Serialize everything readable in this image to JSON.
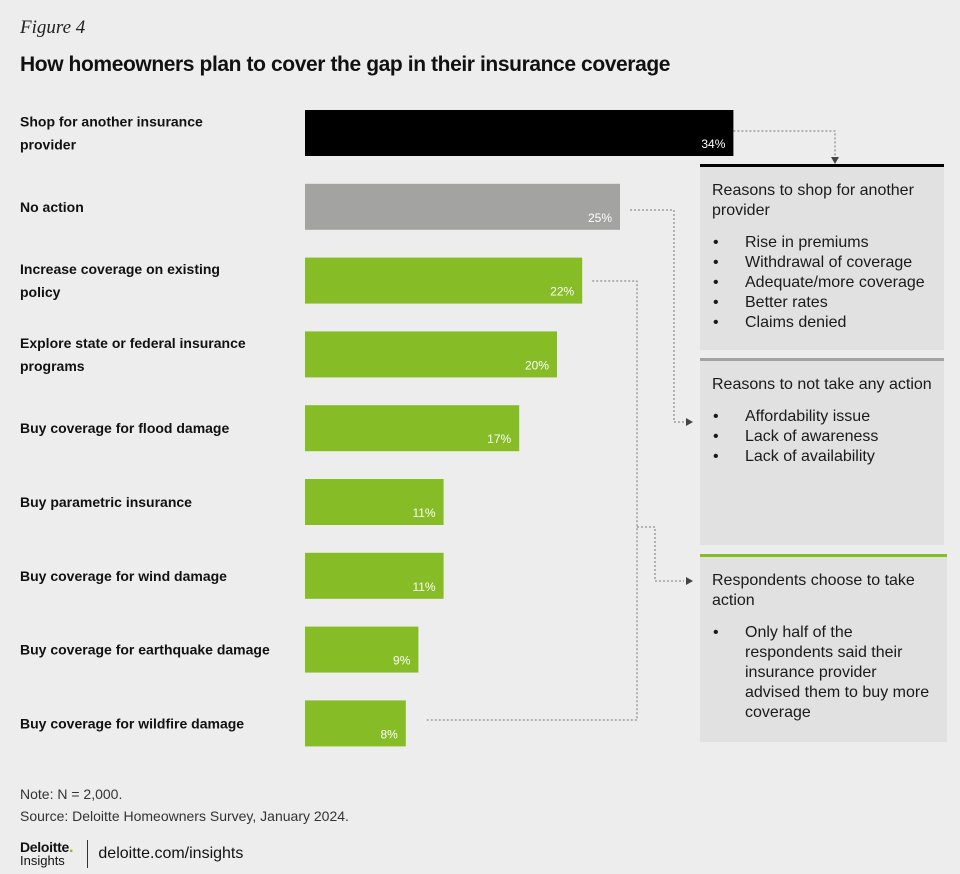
{
  "figure_label": "Figure 4",
  "title": "How homeowners plan to cover the gap in their insurance coverage",
  "chart_data": {
    "type": "bar",
    "orientation": "horizontal",
    "categories": [
      "Shop for another insurance provider",
      "No action",
      "Increase coverage on existing policy",
      "Explore state or federal insurance programs",
      "Buy coverage for flood damage",
      "Buy parametric insurance",
      "Buy coverage for wind damage",
      "Buy coverage for earthquake damage",
      "Buy coverage for wildfire damage"
    ],
    "values": [
      34,
      25,
      22,
      20,
      17,
      11,
      11,
      9,
      8
    ],
    "value_labels": [
      "34%",
      "25%",
      "22%",
      "20%",
      "17%",
      "11%",
      "11%",
      "9%",
      "8%"
    ],
    "unit": "%",
    "bar_colors": [
      "#000000",
      "#a3a3a1",
      "#86bc25",
      "#86bc25",
      "#86bc25",
      "#86bc25",
      "#86bc25",
      "#86bc25",
      "#86bc25"
    ]
  },
  "callouts": [
    {
      "title": "Reasons to shop for another provider",
      "items": [
        "Rise in premiums",
        "Withdrawal of coverage",
        "Adequate/more coverage",
        "Better rates",
        "Claims denied"
      ],
      "accent_color": "#000000"
    },
    {
      "title": "Reasons to not take any action",
      "items": [
        "Affordability issue",
        "Lack of awareness",
        "Lack of availability"
      ],
      "accent_color": "#a3a3a1"
    },
    {
      "title": "Respondents choose to take action",
      "items": [
        "Only half of the respondents said their insurance provider advised them to buy more coverage"
      ],
      "accent_color": "#86bc25"
    }
  ],
  "note": "Note: N = 2,000.",
  "source": "Source: Deloitte Homeowners Survey, January 2024.",
  "brand": {
    "name": "Deloitte",
    "dot": ".",
    "sub": "Insights",
    "link": "deloitte.com/insights"
  }
}
